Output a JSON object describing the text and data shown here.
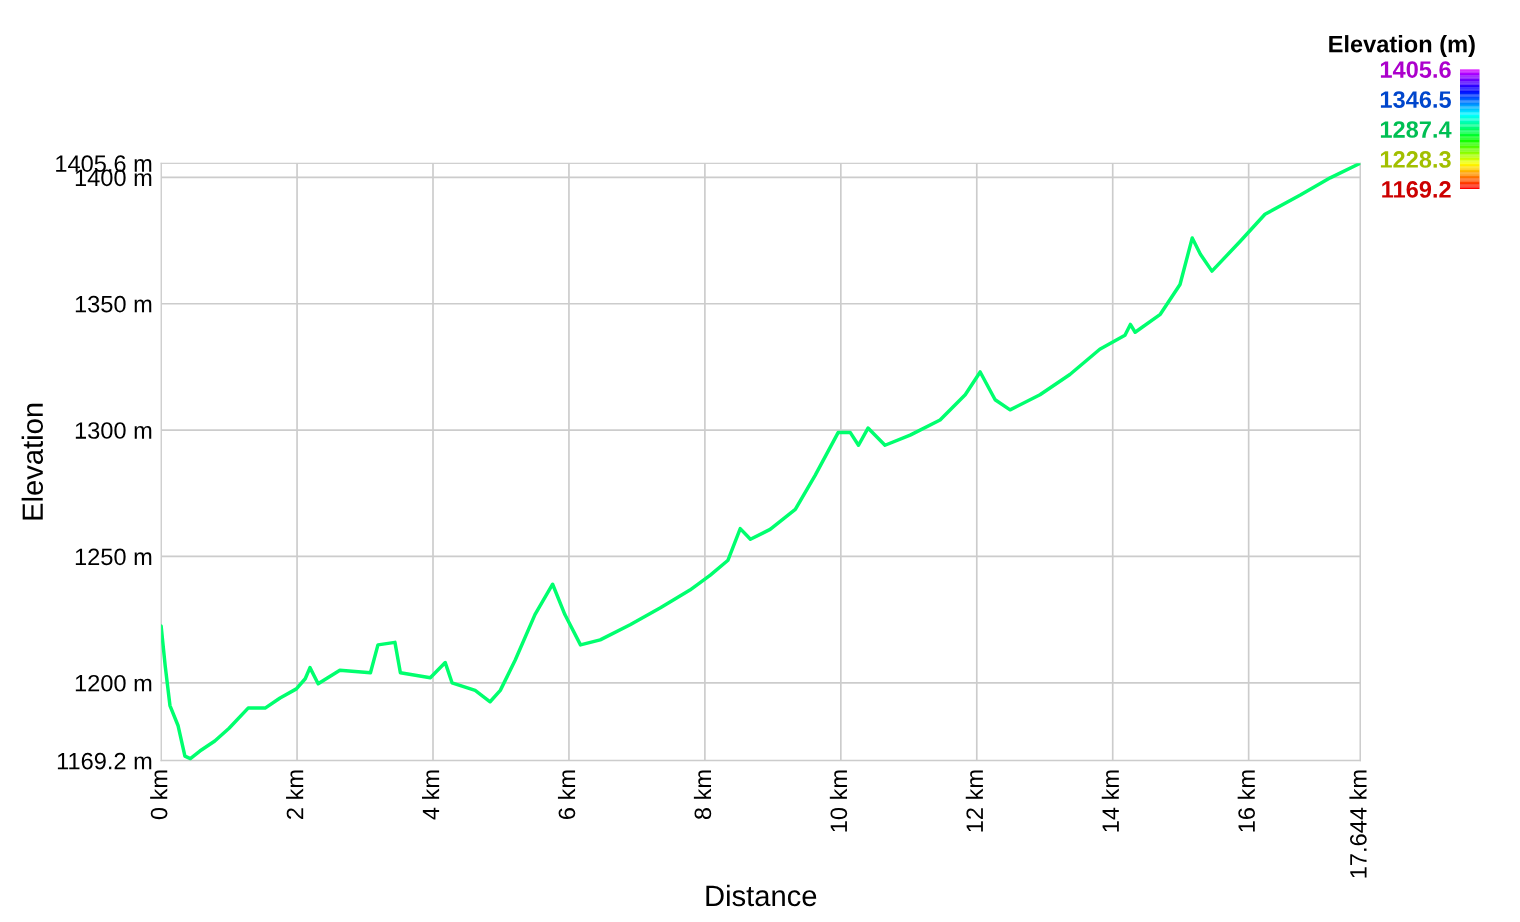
{
  "chart_data": {
    "type": "line",
    "xlabel": "Distance",
    "ylabel": "Elevation",
    "clabel": "Elevation (m)",
    "clim": [
      1169.2,
      1405.6
    ],
    "cticks": [
      1405.6,
      1346.5,
      1287.4,
      1228.3,
      1169.2
    ],
    "xlim": [
      0,
      17.644
    ],
    "xticks": [
      {
        "value": 0,
        "label": "0 km"
      },
      {
        "value": 2,
        "label": "2 km"
      },
      {
        "value": 4,
        "label": "4 km"
      },
      {
        "value": 6,
        "label": "6 km"
      },
      {
        "value": 8,
        "label": "8 km"
      },
      {
        "value": 10,
        "label": "10 km"
      },
      {
        "value": 12,
        "label": "12 km"
      },
      {
        "value": 14,
        "label": "14 km"
      },
      {
        "value": 16,
        "label": "16 km"
      },
      {
        "value": 17.644,
        "label": "17.644 km"
      }
    ],
    "ylim": [
      1169.2,
      1405.6
    ],
    "yticks": [
      {
        "value": 1169.2,
        "label": "1169.2 m"
      },
      {
        "value": 1200,
        "label": "1200 m"
      },
      {
        "value": 1250,
        "label": "1250 m"
      },
      {
        "value": 1300,
        "label": "1300 m"
      },
      {
        "value": 1350,
        "label": "1350 m"
      },
      {
        "value": 1400,
        "label": "1400 m"
      },
      {
        "value": 1405.6,
        "label": "1405.6 m"
      }
    ],
    "grid": true,
    "series": [
      {
        "x": [
          0,
          0.06,
          0.13,
          0.25,
          0.35,
          0.43,
          0.57,
          0.79,
          1.0,
          1.28,
          1.53,
          1.75,
          1.99,
          2.12,
          2.19,
          2.31,
          2.63,
          3.08,
          3.19,
          3.44,
          3.52,
          3.96,
          4.18,
          4.28,
          4.62,
          4.84,
          4.99,
          5.21,
          5.5,
          5.76,
          5.94,
          6.17,
          6.46,
          6.9,
          7.34,
          7.78,
          8.08,
          8.34,
          8.52,
          8.67,
          8.96,
          9.33,
          9.62,
          9.96,
          10.14,
          10.26,
          10.4,
          10.65,
          11.02,
          11.46,
          11.83,
          12.05,
          12.27,
          12.49,
          12.93,
          13.37,
          13.81,
          14.18,
          14.26,
          14.33,
          14.7,
          14.99,
          15.17,
          15.29,
          15.46,
          15.88,
          16.24,
          16.76,
          17.2,
          17.644
        ],
        "values": [
          1222.5,
          1206.7,
          1191,
          1183,
          1171,
          1170,
          1173,
          1177,
          1182,
          1190,
          1190,
          1194,
          1197.6,
          1201.6,
          1206,
          1199.6,
          1205,
          1204,
          1215,
          1216,
          1204,
          1202,
          1208,
          1200,
          1197,
          1192.5,
          1197,
          1209,
          1227,
          1239,
          1227,
          1215,
          1217,
          1223,
          1229.6,
          1236.7,
          1242.6,
          1248.5,
          1261,
          1256.8,
          1260.7,
          1268.6,
          1282,
          1299,
          1299,
          1294,
          1300.8,
          1294,
          1298,
          1304,
          1314,
          1323,
          1312,
          1308,
          1314,
          1322,
          1332,
          1337.5,
          1341.8,
          1338.7,
          1345.8,
          1357.6,
          1376,
          1369.6,
          1362.9,
          1374.8,
          1385.4,
          1393,
          1399.8,
          1405.6
        ]
      }
    ]
  }
}
